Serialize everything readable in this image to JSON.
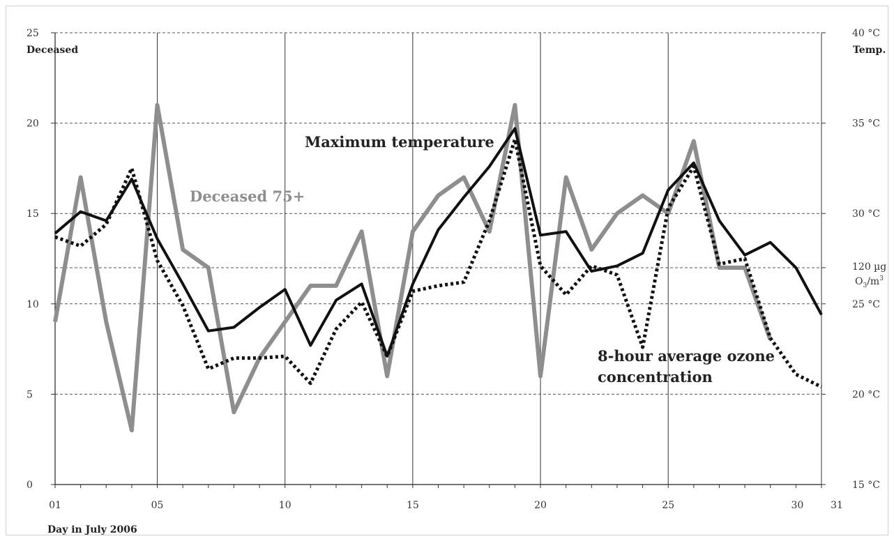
{
  "chart_data": {
    "type": "line",
    "xlabel": "Day in July 2006",
    "x_ticks": [
      "01",
      "05",
      "10",
      "15",
      "20",
      "25",
      "30",
      "31"
    ],
    "y_left": {
      "label": "Deceased",
      "ticks": [
        0,
        5,
        10,
        15,
        20,
        25
      ],
      "range": [
        0,
        25
      ]
    },
    "y_right": {
      "label": "Temp.",
      "ticks": [
        "15 °C",
        "20 °C",
        "25 °C",
        "30 °C",
        "35 °C",
        "40 °C"
      ],
      "range": [
        15,
        40
      ],
      "ozone_threshold": {
        "line1": "120 µg",
        "line2_prefix": "O",
        "line2_sub": "3",
        "line2_mid": "/m",
        "line2_sup": "3"
      }
    },
    "grid": "dashed horizontal, solid vertical every 5 days",
    "x": [
      1,
      2,
      3,
      4,
      5,
      6,
      7,
      8,
      9,
      10,
      11,
      12,
      13,
      14,
      15,
      16,
      17,
      18,
      19,
      20,
      21,
      22,
      23,
      24,
      25,
      26,
      27,
      28,
      29,
      30,
      31
    ],
    "series": [
      {
        "name": "Deceased 75+",
        "axis": "left",
        "style": "solid-gray",
        "color": "#8e8e8e",
        "values": [
          9,
          17,
          9,
          3,
          21,
          13,
          12,
          4,
          7,
          9,
          11,
          11,
          14,
          6,
          14,
          16,
          17,
          14,
          21,
          6,
          17,
          13,
          15,
          16,
          15,
          19,
          12,
          12,
          8,
          null,
          null
        ]
      },
      {
        "name": "Maximum temperature",
        "axis": "right",
        "style": "solid-black",
        "color": "#111111",
        "values": [
          28.9,
          30.1,
          29.6,
          31.9,
          28.6,
          26.1,
          23.5,
          23.7,
          24.8,
          25.8,
          22.7,
          25.2,
          26.1,
          22.1,
          26.1,
          29.1,
          30.9,
          32.6,
          34.7,
          28.8,
          29.0,
          26.8,
          27.1,
          27.8,
          31.3,
          32.8,
          29.6,
          27.7,
          28.4,
          27.0,
          24.4
        ]
      },
      {
        "name": "8-hour average ozone concentration",
        "axis": "right",
        "style": "dotted-black",
        "color": "#111111",
        "values": [
          28.7,
          28.2,
          29.4,
          32.5,
          27.4,
          24.9,
          21.4,
          22.0,
          22.0,
          22.1,
          20.6,
          23.6,
          25.1,
          22.1,
          25.7,
          26.0,
          26.2,
          29.6,
          34.1,
          27.1,
          25.5,
          27.1,
          26.6,
          22.6,
          30.3,
          32.6,
          27.2,
          27.5,
          23.1,
          21.1,
          20.4
        ]
      }
    ],
    "annotations": {
      "deceased": "Deceased 75+",
      "temperature": "Maximum temperature",
      "ozone_line1": "8-hour average ozone",
      "ozone_line2": "concentration"
    }
  }
}
